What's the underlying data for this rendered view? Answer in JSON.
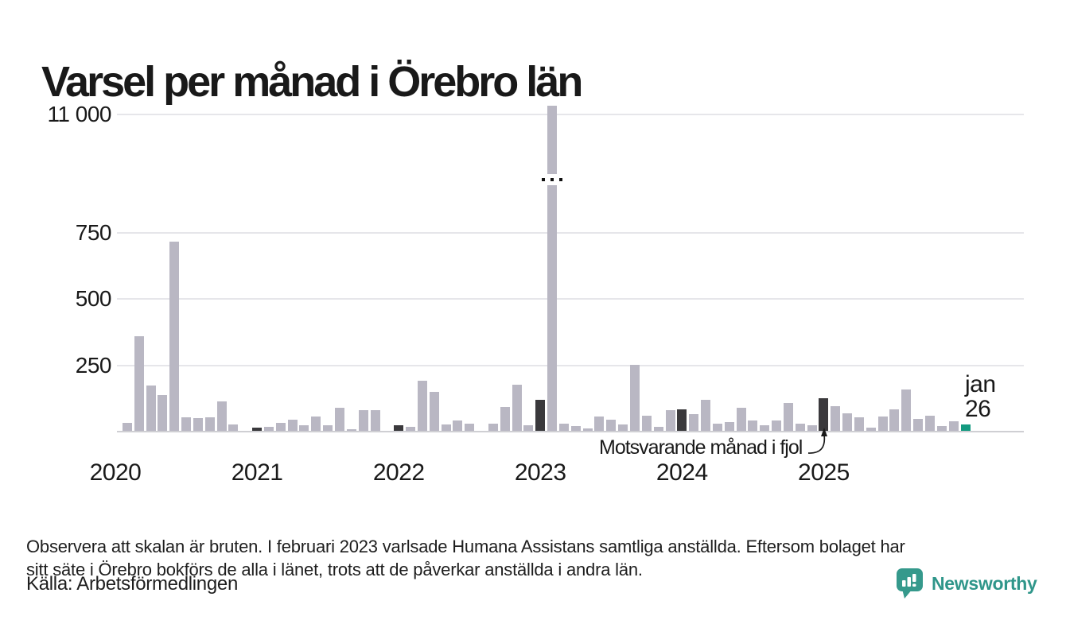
{
  "title": "Varsel per månad i Örebro län",
  "y_axis": {
    "tick_labels": [
      "11 000",
      "750",
      "500",
      "250"
    ]
  },
  "x_axis": {
    "year_labels": [
      "2020",
      "2021",
      "2022",
      "2023",
      "2024",
      "2025"
    ]
  },
  "annotation": {
    "text": "Motsvarande månad i fjol",
    "points_to": "jan 2025"
  },
  "current_bar_label": {
    "line1": "jan",
    "line2": "26"
  },
  "note": {
    "line1": "Observera att skalan är bruten. I februari 2023 varlsade Humana Assistans samtliga anställda. Eftersom bolaget har",
    "line2": "sitt säte i Örebro bokförs de alla i länet, trots att de påverkar anställda i andra län."
  },
  "source": "Källa: Arbetsförmedlingen",
  "branding": {
    "name": "Newsworthy",
    "icon": "newsworthy-bar-chart-bubble-icon",
    "color": "#2f968a"
  },
  "colors": {
    "bar_default": "#b9b7c3",
    "bar_highlight_dark": "#3a393c",
    "bar_current_teal": "#149a80",
    "gridline": "#e6e6ea",
    "baseline": "#cfcfd3",
    "text": "#191919"
  },
  "chart_data": {
    "type": "bar",
    "title": "Varsel per månad i Örebro län",
    "broken_scale": true,
    "broken_scale_note": "y-axis bruten mellan 750 och 11 000; feb 2023 ≈ 11 300 (Humana Assistans)",
    "y_ticks": [
      250,
      500,
      750,
      11000
    ],
    "start_month": "2020-01",
    "values_by_year": {
      "2020": [
        0,
        30,
        358,
        170,
        134,
        715,
        52,
        48,
        52,
        111,
        25,
        0
      ],
      "2021": [
        12,
        15,
        29,
        42,
        20,
        54,
        20,
        87,
        5,
        78,
        77,
        0
      ],
      "2022": [
        22,
        15,
        190,
        146,
        25,
        40,
        26,
        0,
        28,
        90,
        175,
        20
      ],
      "2023": [
        118,
        11300,
        26,
        19,
        8,
        53,
        41,
        24,
        248,
        56,
        16,
        79
      ],
      "2024": [
        80,
        64,
        116,
        27,
        33,
        88,
        39,
        20,
        40,
        104,
        27,
        21
      ],
      "2025": [
        122,
        92,
        66,
        52,
        13,
        55,
        81,
        156,
        45,
        58,
        18,
        35
      ],
      "2026": [
        24
      ]
    },
    "highlighted_dark_months": [
      "2021-01",
      "2022-01",
      "2023-01",
      "2024-01",
      "2025-01"
    ],
    "current_month_teal": "2026-01",
    "legend_position": "none",
    "grid": "horizontal"
  }
}
